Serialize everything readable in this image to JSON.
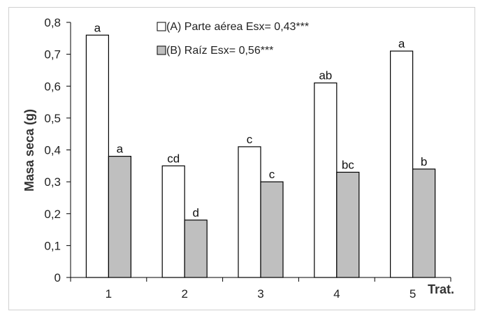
{
  "chart_data": {
    "type": "bar",
    "title": "",
    "xlabel": "Trat.",
    "ylabel": "Masa seca (g)",
    "ylim": [
      0,
      0.8
    ],
    "yticks": [
      "0",
      "0,1",
      "0,2",
      "0,3",
      "0,4",
      "0,5",
      "0,6",
      "0,7",
      "0,8"
    ],
    "categories": [
      "1",
      "2",
      "3",
      "4",
      "5"
    ],
    "legend_position": "top-center",
    "grid": false,
    "series": [
      {
        "name": "(A) Parte aérea Esx= 0,43***",
        "values": [
          0.76,
          0.35,
          0.41,
          0.61,
          0.71
        ],
        "letters": [
          "a",
          "cd",
          "c",
          "ab",
          "a"
        ],
        "fill": "#ffffff",
        "stroke": "#000000"
      },
      {
        "name": "(B) Raíz Esx= 0,56***",
        "values": [
          0.38,
          0.18,
          0.3,
          0.33,
          0.34
        ],
        "letters": [
          "a",
          "d",
          "c",
          "bc",
          "b"
        ],
        "fill": "#bfbfbf",
        "stroke": "#000000"
      }
    ]
  }
}
